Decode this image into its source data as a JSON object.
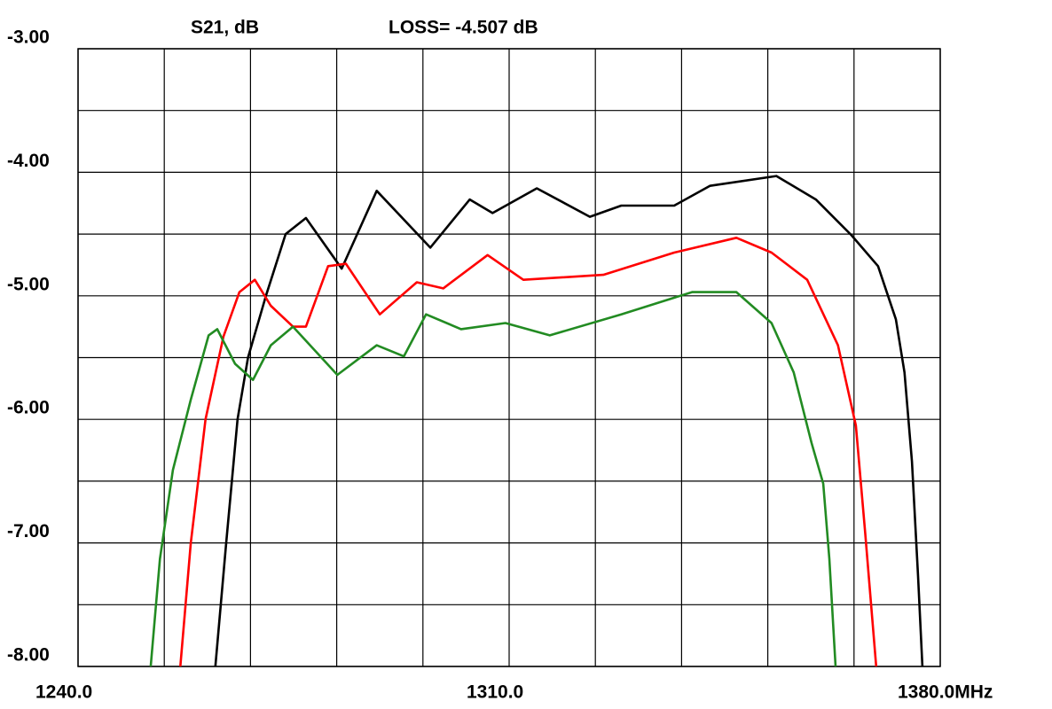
{
  "chart_data": {
    "type": "line",
    "title": "S21, dB",
    "annotation": "LOSS=  -4.507 dB",
    "xlim": [
      1240,
      1380
    ],
    "ylim": [
      -8,
      -3
    ],
    "xticks": [
      {
        "value": 1240,
        "label": "1240.0"
      },
      {
        "value": 1310,
        "label": "1310.0"
      },
      {
        "value": 1380,
        "label": "1380.0MHz"
      }
    ],
    "minor_xticks": [
      1254,
      1268,
      1282,
      1296,
      1324,
      1338,
      1352,
      1366
    ],
    "yticks": [
      {
        "value": -3,
        "label": "-3.00"
      },
      {
        "value": -4,
        "label": "-4.00"
      },
      {
        "value": -5,
        "label": "-5.00"
      },
      {
        "value": -6,
        "label": "-6.00"
      },
      {
        "value": -7,
        "label": "-7.00"
      },
      {
        "value": -8,
        "label": "-8.00"
      }
    ],
    "minor_yticks": [
      -3.5,
      -4.5,
      -5.5,
      -6.5,
      -7.5
    ],
    "grid": true,
    "series": [
      {
        "color": "#000000",
        "x": [
          1262.3,
          1264.05,
          1265.9,
          1267.6,
          1270.5,
          1273.7,
          1277.0,
          1282.8,
          1288.5,
          1297.2,
          1303.6,
          1307.3,
          1314.5,
          1323.1,
          1328.2,
          1336.8,
          1342.6,
          1353.4,
          1359.8,
          1365.6,
          1369.9,
          1372.8,
          1374.2,
          1375.4,
          1376.4,
          1377.1
        ],
        "values": [
          -8.0,
          -7.0,
          -6.0,
          -5.5,
          -5.0,
          -4.5,
          -4.37,
          -4.78,
          -4.15,
          -4.61,
          -4.22,
          -4.33,
          -4.13,
          -4.36,
          -4.27,
          -4.27,
          -4.11,
          -4.03,
          -4.22,
          -4.51,
          -4.76,
          -5.19,
          -5.62,
          -6.34,
          -7.27,
          -8.0
        ]
      },
      {
        "color": "#ff0000",
        "x": [
          1256.6,
          1258.3,
          1260.7,
          1263.6,
          1266.2,
          1268.7,
          1271.3,
          1274.9,
          1277.0,
          1280.6,
          1283.5,
          1289.0,
          1295.0,
          1299.3,
          1306.5,
          1312.3,
          1325.3,
          1336.8,
          1346.9,
          1352.6,
          1358.4,
          1363.4,
          1366.3,
          1367.8,
          1369.6
        ],
        "values": [
          -8.0,
          -7.0,
          -6.0,
          -5.33,
          -4.97,
          -4.87,
          -5.08,
          -5.25,
          -5.25,
          -4.76,
          -4.74,
          -5.15,
          -4.89,
          -4.94,
          -4.67,
          -4.87,
          -4.83,
          -4.65,
          -4.53,
          -4.65,
          -4.87,
          -5.4,
          -6.05,
          -6.91,
          -8.0
        ]
      },
      {
        "color": "#228b22",
        "x": [
          1251.8,
          1253.3,
          1255.4,
          1258.3,
          1261.2,
          1262.6,
          1265.5,
          1268.4,
          1271.3,
          1274.9,
          1282.1,
          1288.5,
          1292.9,
          1296.5,
          1302.2,
          1309.4,
          1316.6,
          1328.2,
          1339.7,
          1346.9,
          1352.6,
          1356.2,
          1359.1,
          1361.0,
          1362.0,
          1363.0
        ],
        "values": [
          -8.0,
          -7.13,
          -6.41,
          -5.84,
          -5.32,
          -5.27,
          -5.55,
          -5.68,
          -5.4,
          -5.25,
          -5.64,
          -5.4,
          -5.49,
          -5.15,
          -5.27,
          -5.22,
          -5.32,
          -5.15,
          -4.97,
          -4.97,
          -5.22,
          -5.62,
          -6.19,
          -6.52,
          -7.13,
          -8.0
        ]
      }
    ]
  }
}
